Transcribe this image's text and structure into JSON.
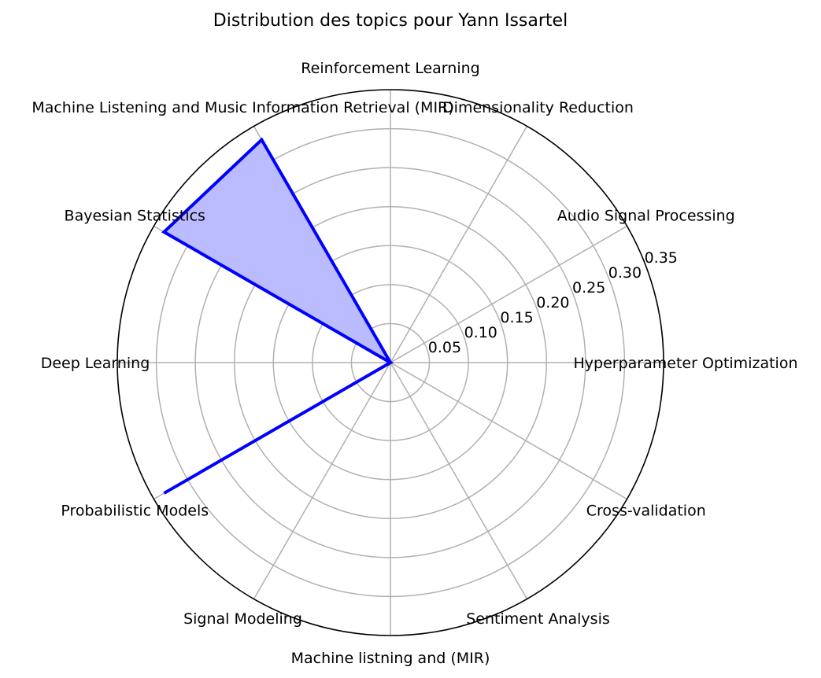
{
  "chart_data": {
    "type": "radar",
    "title": "Distribution des topics pour Yann Issartel",
    "categories": [
      "Hyperparameter Optimization",
      "Audio Signal Processing",
      "Dimensionality Reduction",
      "Reinforcement Learning",
      "Machine Listening and Music Information Retrieval (MIR)",
      "Bayesian Statistics",
      "Deep Learning",
      "Probabilistic Models",
      "Signal Modeling",
      "Machine listning and (MIR)",
      "Sentiment Analysis",
      "Cross-validation"
    ],
    "values": [
      0,
      0,
      0,
      0,
      0.33,
      0.335,
      0,
      0.335,
      0,
      0,
      0,
      0
    ],
    "r_ticks": [
      "0.05",
      "0.10",
      "0.15",
      "0.20",
      "0.25",
      "0.30",
      "0.35"
    ],
    "r_tick_values": [
      0.05,
      0.1,
      0.15,
      0.2,
      0.25,
      0.3,
      0.35
    ],
    "rlim": [
      0,
      0.35
    ],
    "grid": true,
    "line_color": "#0000ff",
    "fill_color": "#bbbbff",
    "grid_color": "#b0b0b0"
  }
}
